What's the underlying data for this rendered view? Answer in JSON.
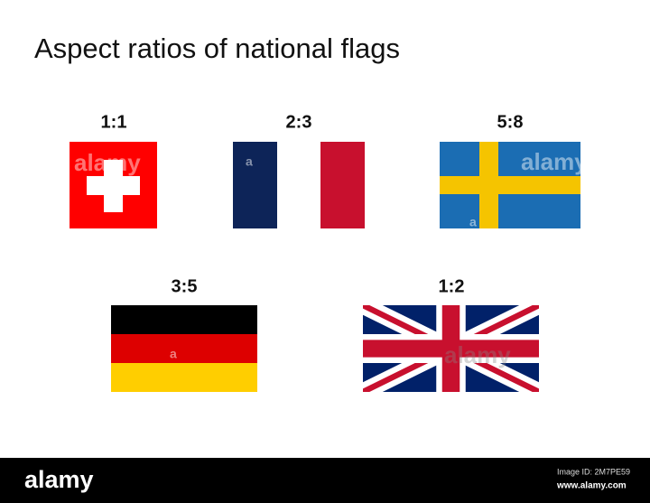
{
  "title": "Aspect ratios of national flags",
  "flags": [
    {
      "ratio": "1:1"
    },
    {
      "ratio": "2:3"
    },
    {
      "ratio": "5:8"
    },
    {
      "ratio": "3:5"
    },
    {
      "ratio": "1:2"
    }
  ],
  "watermark": "alamy",
  "watermark_fragment": "a",
  "footer": {
    "brand": "alamy",
    "image_id": "Image ID: 2M7PE59",
    "url": "www.alamy.com"
  }
}
